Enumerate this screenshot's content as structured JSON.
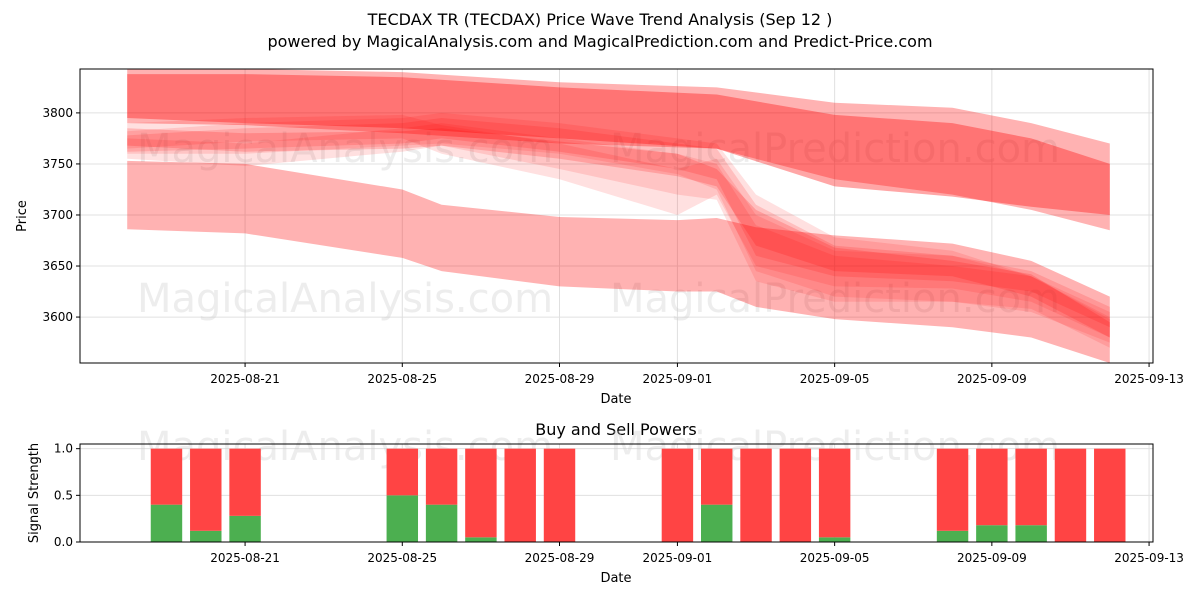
{
  "title": "TECDAX TR (TECDAX) Price Wave Trend Analysis (Sep 12 )",
  "subtitle": "powered by MagicalAnalysis.com and MagicalPrediction.com and Predict-Price.com",
  "watermarks": [
    "MagicalAnalysis.com",
    "MagicalPrediction.com"
  ],
  "colors": {
    "band": "#ff0000",
    "buy": "#4caf50",
    "sell": "#ff4444",
    "grid": "#e0e0e0"
  },
  "chart_data": [
    {
      "type": "area",
      "xlabel": "Date",
      "ylabel": "Price",
      "xlim": [
        "2025-08-17",
        "2025-09-13"
      ],
      "ylim": [
        3555,
        3843
      ],
      "grid": true,
      "x_ticks": [
        "2025-08-21",
        "2025-08-25",
        "2025-08-29",
        "2025-09-01",
        "2025-09-05",
        "2025-09-09",
        "2025-09-13"
      ],
      "y_ticks": [
        3600,
        3650,
        3700,
        3750,
        3800
      ],
      "series": [
        {
          "x": [
            "2025-08-18",
            "2025-08-21",
            "2025-08-25",
            "2025-08-29",
            "2025-09-02",
            "2025-09-05",
            "2025-09-08",
            "2025-09-10",
            "2025-09-12"
          ],
          "upper": [
            3843,
            3843,
            3840,
            3830,
            3825,
            3810,
            3805,
            3790,
            3770
          ],
          "lower": [
            3790,
            3788,
            3780,
            3770,
            3765,
            3735,
            3720,
            3705,
            3685
          ],
          "opacity": 0.3
        },
        {
          "x": [
            "2025-08-18",
            "2025-08-21",
            "2025-08-25",
            "2025-08-29",
            "2025-09-02",
            "2025-09-05",
            "2025-09-08",
            "2025-09-10",
            "2025-09-12"
          ],
          "upper": [
            3838,
            3838,
            3835,
            3825,
            3818,
            3798,
            3790,
            3775,
            3750
          ],
          "lower": [
            3795,
            3790,
            3785,
            3775,
            3765,
            3728,
            3718,
            3708,
            3700
          ],
          "opacity": 0.35
        },
        {
          "x": [
            "2025-08-18",
            "2025-08-21",
            "2025-08-25",
            "2025-08-26",
            "2025-08-29",
            "2025-09-01",
            "2025-09-02",
            "2025-09-03",
            "2025-09-05",
            "2025-09-08",
            "2025-09-10",
            "2025-09-12"
          ],
          "upper": [
            3753,
            3750,
            3725,
            3710,
            3698,
            3695,
            3697,
            3688,
            3680,
            3672,
            3655,
            3620
          ],
          "lower": [
            3686,
            3682,
            3658,
            3645,
            3630,
            3625,
            3625,
            3610,
            3598,
            3590,
            3580,
            3555
          ],
          "opacity": 0.3
        },
        {
          "x": [
            "2025-08-18",
            "2025-08-21",
            "2025-08-25",
            "2025-08-26",
            "2025-08-29",
            "2025-09-01",
            "2025-09-02",
            "2025-09-03",
            "2025-09-05",
            "2025-09-08",
            "2025-09-10",
            "2025-09-12"
          ],
          "upper": [
            3782,
            3790,
            3795,
            3800,
            3790,
            3775,
            3770,
            3720,
            3678,
            3665,
            3640,
            3600
          ],
          "lower": [
            3760,
            3760,
            3768,
            3770,
            3760,
            3740,
            3725,
            3645,
            3620,
            3615,
            3605,
            3575
          ],
          "opacity": 0.12
        },
        {
          "x": [
            "2025-08-18",
            "2025-08-21",
            "2025-08-25",
            "2025-08-26",
            "2025-08-29",
            "2025-09-01",
            "2025-09-02",
            "2025-09-03",
            "2025-09-05",
            "2025-09-08",
            "2025-09-10",
            "2025-09-12"
          ],
          "upper": [
            3778,
            3785,
            3790,
            3795,
            3785,
            3770,
            3765,
            3710,
            3670,
            3660,
            3645,
            3610
          ],
          "lower": [
            3762,
            3765,
            3770,
            3775,
            3762,
            3745,
            3735,
            3660,
            3640,
            3635,
            3625,
            3590
          ],
          "opacity": 0.15
        },
        {
          "x": [
            "2025-08-18",
            "2025-08-21",
            "2025-08-25",
            "2025-08-26",
            "2025-08-29",
            "2025-09-01",
            "2025-09-02",
            "2025-09-03",
            "2025-09-05",
            "2025-09-08",
            "2025-09-10",
            "2025-09-12"
          ],
          "upper": [
            3790,
            3795,
            3798,
            3788,
            3770,
            3745,
            3755,
            3700,
            3665,
            3660,
            3640,
            3605
          ],
          "lower": [
            3765,
            3772,
            3775,
            3760,
            3735,
            3700,
            3720,
            3650,
            3630,
            3628,
            3615,
            3580
          ],
          "opacity": 0.12
        },
        {
          "x": [
            "2025-08-18",
            "2025-08-21",
            "2025-08-25",
            "2025-08-26",
            "2025-08-29",
            "2025-09-01",
            "2025-09-02",
            "2025-09-03",
            "2025-09-05",
            "2025-09-08",
            "2025-09-10",
            "2025-09-12"
          ],
          "upper": [
            3775,
            3770,
            3785,
            3790,
            3775,
            3760,
            3750,
            3690,
            3660,
            3650,
            3640,
            3598
          ],
          "lower": [
            3755,
            3748,
            3762,
            3768,
            3745,
            3720,
            3715,
            3635,
            3615,
            3615,
            3608,
            3570
          ],
          "opacity": 0.12
        },
        {
          "x": [
            "2025-08-18",
            "2025-08-21",
            "2025-08-25",
            "2025-08-26",
            "2025-08-29",
            "2025-09-01",
            "2025-09-02",
            "2025-09-03",
            "2025-09-05",
            "2025-09-08",
            "2025-09-10",
            "2025-09-12"
          ],
          "upper": [
            3785,
            3780,
            3782,
            3785,
            3772,
            3760,
            3745,
            3705,
            3668,
            3655,
            3642,
            3595
          ],
          "lower": [
            3768,
            3762,
            3765,
            3768,
            3755,
            3738,
            3728,
            3670,
            3645,
            3640,
            3620,
            3580
          ],
          "opacity": 0.18
        }
      ]
    },
    {
      "type": "bar",
      "title": "Buy and Sell Powers",
      "xlabel": "Date",
      "ylabel": "Signal Strength",
      "xlim": [
        "2025-08-17",
        "2025-09-13"
      ],
      "ylim": [
        0,
        1.05
      ],
      "grid": true,
      "x_ticks": [
        "2025-08-21",
        "2025-08-25",
        "2025-08-29",
        "2025-09-01",
        "2025-09-05",
        "2025-09-09",
        "2025-09-13"
      ],
      "y_ticks": [
        0.0,
        0.5,
        1.0
      ],
      "categories": [
        "2025-08-19",
        "2025-08-20",
        "2025-08-21",
        "2025-08-25",
        "2025-08-26",
        "2025-08-27",
        "2025-08-28",
        "2025-08-29",
        "2025-09-01",
        "2025-09-02",
        "2025-09-03",
        "2025-09-04",
        "2025-09-05",
        "2025-09-08",
        "2025-09-09",
        "2025-09-10",
        "2025-09-11",
        "2025-09-12"
      ],
      "series": [
        {
          "values": [
            0.4,
            0.12,
            0.28,
            0.5,
            0.4,
            0.05,
            0.0,
            0.0,
            0.0,
            0.4,
            0.0,
            0.0,
            0.05,
            0.12,
            0.18,
            0.18,
            0.0,
            0.0
          ]
        },
        {
          "values": [
            0.6,
            0.88,
            0.72,
            0.5,
            0.6,
            0.95,
            1.0,
            1.0,
            1.0,
            0.6,
            1.0,
            1.0,
            0.95,
            0.88,
            0.82,
            0.82,
            1.0,
            1.0
          ]
        }
      ]
    }
  ]
}
